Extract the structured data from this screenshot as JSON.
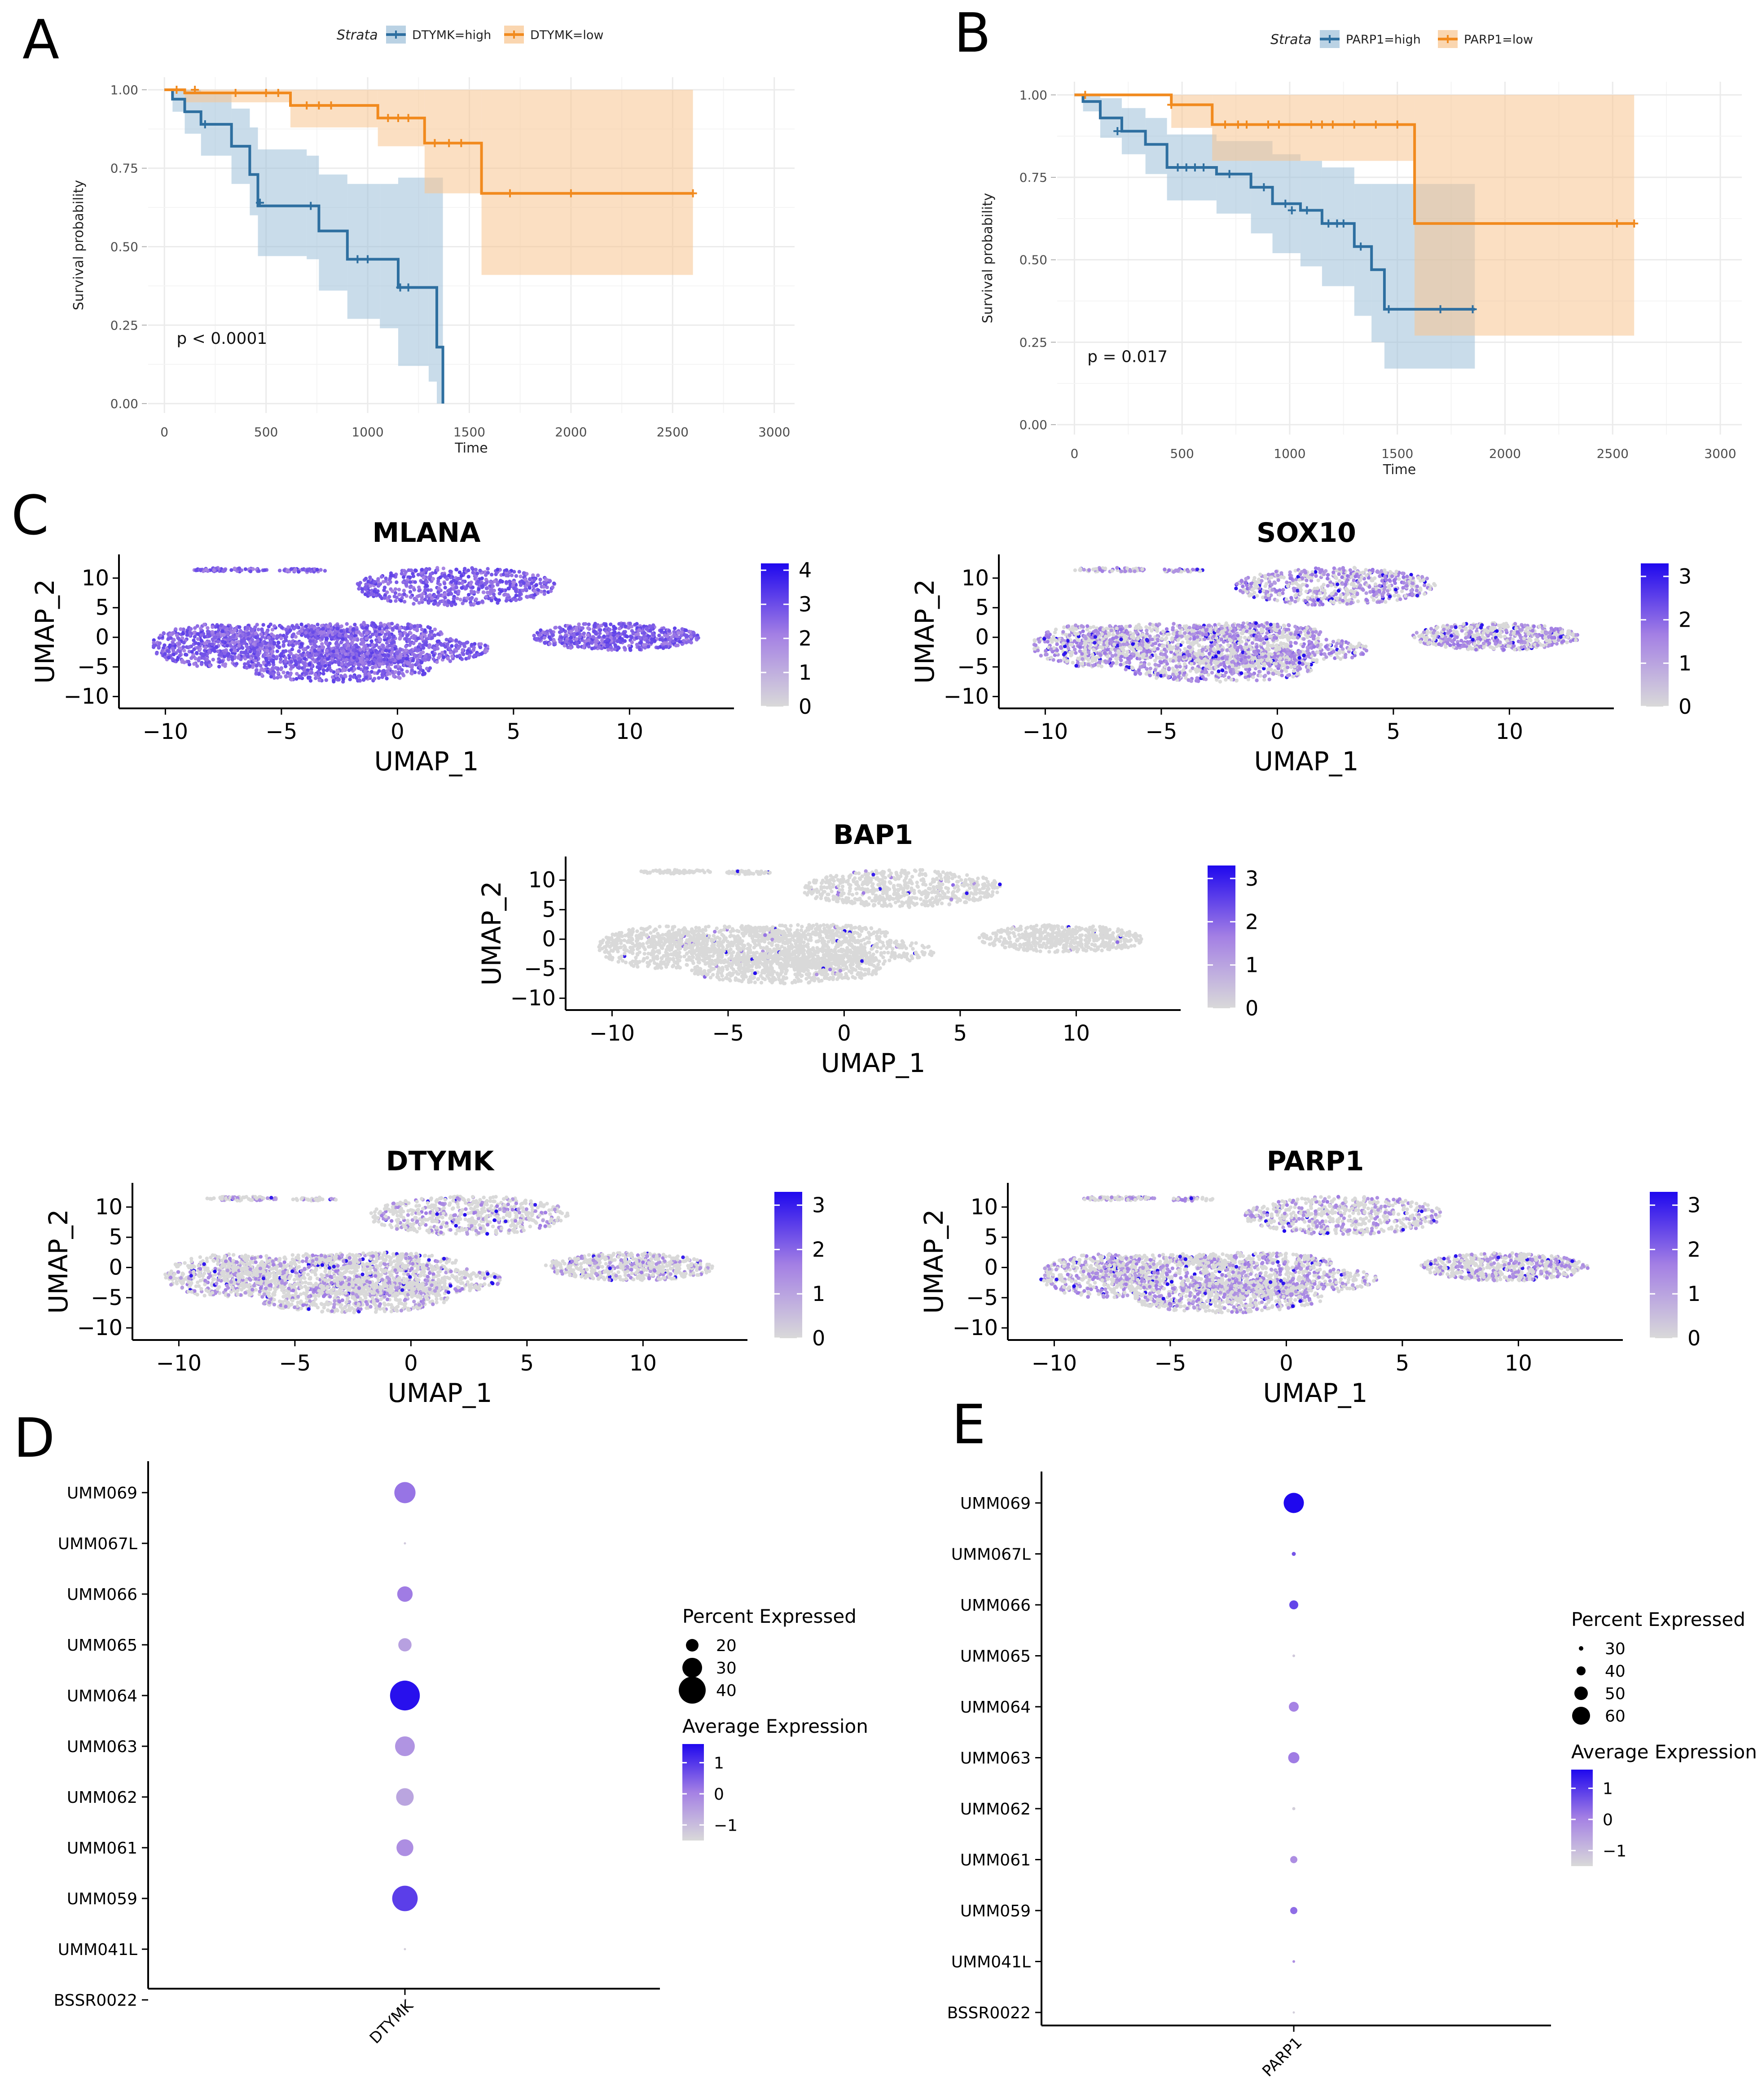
{
  "panel_labels": {
    "a": "A",
    "b": "B",
    "c": "C",
    "d": "D",
    "e": "E"
  },
  "chart_data": [
    {
      "id": "A",
      "type": "line",
      "subtype": "kaplan-meier",
      "legend_title": "Strata",
      "xlabel": "Time",
      "ylabel": "Survival probability",
      "xlim": [
        -80,
        3100
      ],
      "ylim": [
        -0.03,
        1.04
      ],
      "xticks": [
        0,
        500,
        1000,
        1500,
        2000,
        2500,
        3000
      ],
      "yticks": [
        0,
        0.25,
        0.5,
        0.75,
        1.0
      ],
      "ytick_labels": [
        "0.00",
        "0.25",
        "0.50",
        "0.75",
        "1.00"
      ],
      "annotation": "p < 0.0001",
      "annotation_pos": [
        60,
        0.19
      ],
      "series": [
        {
          "name": "DTYMK=high",
          "color": "#2E6FA0",
          "fill": "#9DBFD8",
          "steps": [
            [
              0,
              1.0
            ],
            [
              40,
              0.97
            ],
            [
              100,
              0.93
            ],
            [
              180,
              0.89
            ],
            [
              330,
              0.82
            ],
            [
              420,
              0.73
            ],
            [
              460,
              0.63
            ],
            [
              700,
              0.63
            ],
            [
              760,
              0.55
            ],
            [
              900,
              0.46
            ],
            [
              1060,
              0.46
            ],
            [
              1150,
              0.37
            ],
            [
              1300,
              0.37
            ],
            [
              1340,
              0.18
            ],
            [
              1370,
              0.0
            ]
          ],
          "lower": [
            [
              0,
              1.0
            ],
            [
              40,
              0.93
            ],
            [
              100,
              0.86
            ],
            [
              180,
              0.79
            ],
            [
              330,
              0.7
            ],
            [
              420,
              0.6
            ],
            [
              460,
              0.47
            ],
            [
              700,
              0.46
            ],
            [
              760,
              0.36
            ],
            [
              900,
              0.27
            ],
            [
              1060,
              0.24
            ],
            [
              1150,
              0.12
            ],
            [
              1300,
              0.07
            ],
            [
              1340,
              0.0
            ]
          ],
          "upper": [
            [
              0,
              1.0
            ],
            [
              40,
              1.0
            ],
            [
              100,
              1.0
            ],
            [
              180,
              0.99
            ],
            [
              330,
              0.94
            ],
            [
              420,
              0.88
            ],
            [
              460,
              0.81
            ],
            [
              700,
              0.79
            ],
            [
              760,
              0.73
            ],
            [
              900,
              0.7
            ],
            [
              1060,
              0.7
            ],
            [
              1150,
              0.72
            ],
            [
              1300,
              0.72
            ],
            [
              1340,
              0.72
            ],
            [
              1370,
              0.72
            ]
          ],
          "censored": [
            [
              200,
              0.89
            ],
            [
              470,
              0.64
            ],
            [
              720,
              0.63
            ],
            [
              950,
              0.46
            ],
            [
              1000,
              0.46
            ],
            [
              1160,
              0.37
            ],
            [
              1200,
              0.37
            ]
          ]
        },
        {
          "name": "DTYMK=low",
          "color": "#F18A1E",
          "fill": "#F8C58F",
          "steps": [
            [
              0,
              1.0
            ],
            [
              100,
              0.99
            ],
            [
              620,
              0.95
            ],
            [
              1050,
              0.91
            ],
            [
              1280,
              0.83
            ],
            [
              1560,
              0.67
            ],
            [
              2600,
              0.67
            ]
          ],
          "lower": [
            [
              0,
              1.0
            ],
            [
              100,
              0.96
            ],
            [
              620,
              0.88
            ],
            [
              1050,
              0.82
            ],
            [
              1280,
              0.67
            ],
            [
              1560,
              0.41
            ],
            [
              2600,
              0.41
            ]
          ],
          "upper": [
            [
              0,
              1.0
            ],
            [
              2600,
              1.0
            ]
          ],
          "censored": [
            [
              60,
              1.0
            ],
            [
              150,
              1.0
            ],
            [
              350,
              0.99
            ],
            [
              500,
              0.99
            ],
            [
              560,
              0.99
            ],
            [
              700,
              0.95
            ],
            [
              760,
              0.95
            ],
            [
              820,
              0.95
            ],
            [
              1100,
              0.91
            ],
            [
              1150,
              0.91
            ],
            [
              1200,
              0.91
            ],
            [
              1330,
              0.83
            ],
            [
              1400,
              0.83
            ],
            [
              1460,
              0.83
            ],
            [
              1700,
              0.67
            ],
            [
              2000,
              0.67
            ],
            [
              2600,
              0.67
            ]
          ]
        }
      ]
    },
    {
      "id": "B",
      "type": "line",
      "subtype": "kaplan-meier",
      "legend_title": "Strata",
      "xlabel": "Time",
      "ylabel": "Survival probability",
      "xlim": [
        -80,
        3100
      ],
      "ylim": [
        -0.03,
        1.04
      ],
      "xticks": [
        0,
        500,
        1000,
        1500,
        2000,
        2500,
        3000
      ],
      "yticks": [
        0,
        0.25,
        0.5,
        0.75,
        1.0
      ],
      "ytick_labels": [
        "0.00",
        "0.25",
        "0.50",
        "0.75",
        "1.00"
      ],
      "annotation": "p = 0.017",
      "annotation_pos": [
        60,
        0.19
      ],
      "series": [
        {
          "name": "PARP1=high",
          "color": "#2E6FA0",
          "fill": "#9DBFD8",
          "steps": [
            [
              0,
              1.0
            ],
            [
              40,
              0.98
            ],
            [
              120,
              0.93
            ],
            [
              220,
              0.89
            ],
            [
              330,
              0.85
            ],
            [
              430,
              0.78
            ],
            [
              660,
              0.76
            ],
            [
              820,
              0.72
            ],
            [
              920,
              0.67
            ],
            [
              1050,
              0.65
            ],
            [
              1150,
              0.61
            ],
            [
              1300,
              0.54
            ],
            [
              1380,
              0.47
            ],
            [
              1440,
              0.35
            ],
            [
              1860,
              0.35
            ]
          ],
          "lower": [
            [
              0,
              1.0
            ],
            [
              40,
              0.95
            ],
            [
              120,
              0.87
            ],
            [
              220,
              0.82
            ],
            [
              330,
              0.76
            ],
            [
              430,
              0.68
            ],
            [
              660,
              0.64
            ],
            [
              820,
              0.58
            ],
            [
              920,
              0.52
            ],
            [
              1050,
              0.48
            ],
            [
              1150,
              0.42
            ],
            [
              1300,
              0.33
            ],
            [
              1380,
              0.25
            ],
            [
              1440,
              0.17
            ],
            [
              1860,
              0.17
            ]
          ],
          "upper": [
            [
              0,
              1.0
            ],
            [
              120,
              0.99
            ],
            [
              220,
              0.96
            ],
            [
              330,
              0.93
            ],
            [
              430,
              0.88
            ],
            [
              660,
              0.86
            ],
            [
              820,
              0.86
            ],
            [
              920,
              0.82
            ],
            [
              1050,
              0.8
            ],
            [
              1150,
              0.78
            ],
            [
              1300,
              0.73
            ],
            [
              1860,
              0.73
            ]
          ],
          "censored": [
            [
              200,
              0.89
            ],
            [
              480,
              0.78
            ],
            [
              520,
              0.78
            ],
            [
              560,
              0.78
            ],
            [
              600,
              0.78
            ],
            [
              720,
              0.76
            ],
            [
              880,
              0.72
            ],
            [
              980,
              0.67
            ],
            [
              1010,
              0.65
            ],
            [
              1080,
              0.65
            ],
            [
              1180,
              0.61
            ],
            [
              1220,
              0.61
            ],
            [
              1250,
              0.61
            ],
            [
              1330,
              0.54
            ],
            [
              1460,
              0.35
            ],
            [
              1700,
              0.35
            ],
            [
              1850,
              0.35
            ]
          ]
        },
        {
          "name": "PARP1=low",
          "color": "#F18A1E",
          "fill": "#F8C58F",
          "steps": [
            [
              0,
              1.0
            ],
            [
              450,
              0.97
            ],
            [
              640,
              0.91
            ],
            [
              1580,
              0.61
            ],
            [
              2600,
              0.61
            ]
          ],
          "lower": [
            [
              0,
              1.0
            ],
            [
              450,
              0.9
            ],
            [
              640,
              0.8
            ],
            [
              1580,
              0.27
            ],
            [
              2600,
              0.27
            ]
          ],
          "upper": [
            [
              0,
              1.0
            ],
            [
              2600,
              1.0
            ]
          ],
          "censored": [
            [
              50,
              1.0
            ],
            [
              450,
              0.97
            ],
            [
              700,
              0.91
            ],
            [
              760,
              0.91
            ],
            [
              800,
              0.91
            ],
            [
              900,
              0.91
            ],
            [
              950,
              0.91
            ],
            [
              1100,
              0.91
            ],
            [
              1150,
              0.91
            ],
            [
              1200,
              0.91
            ],
            [
              1300,
              0.91
            ],
            [
              1400,
              0.91
            ],
            [
              1500,
              0.91
            ],
            [
              2520,
              0.61
            ],
            [
              2600,
              0.61
            ]
          ]
        }
      ]
    },
    {
      "id": "C1",
      "type": "scatter",
      "subtype": "umap-feature",
      "title": "MLANA",
      "xlabel": "UMAP_1",
      "ylabel": "UMAP_2",
      "xticks": [
        -10,
        -5,
        0,
        5,
        10
      ],
      "yticks": [
        -10,
        -5,
        0,
        5,
        10
      ],
      "xlim": [
        -12,
        14.5
      ],
      "ylim": [
        -12,
        14
      ],
      "colorbar_ticks": [
        0,
        1,
        2,
        3,
        4
      ],
      "colorbar_max": 4.2,
      "expression_level": 0.62,
      "expression_fraction": 1.0,
      "high_fraction": 0.0
    },
    {
      "id": "C2",
      "type": "scatter",
      "subtype": "umap-feature",
      "title": "SOX10",
      "xlabel": "UMAP_1",
      "ylabel": "UMAP_2",
      "xticks": [
        -10,
        -5,
        0,
        5,
        10
      ],
      "yticks": [
        -10,
        -5,
        0,
        5,
        10
      ],
      "xlim": [
        -12,
        14.5
      ],
      "ylim": [
        -12,
        14
      ],
      "colorbar_ticks": [
        0,
        1,
        2,
        3
      ],
      "colorbar_max": 3.3,
      "expression_level": 0.45,
      "expression_fraction": 0.55,
      "high_fraction": 0.05
    },
    {
      "id": "C3",
      "type": "scatter",
      "subtype": "umap-feature",
      "title": "BAP1",
      "xlabel": "UMAP_1",
      "ylabel": "UMAP_2",
      "xticks": [
        -10,
        -5,
        0,
        5,
        10
      ],
      "yticks": [
        -10,
        -5,
        0,
        5,
        10
      ],
      "xlim": [
        -12,
        14.5
      ],
      "ylim": [
        -12,
        14
      ],
      "colorbar_ticks": [
        0,
        1,
        2,
        3
      ],
      "colorbar_max": 3.3,
      "expression_level": 0.5,
      "expression_fraction": 0.02,
      "high_fraction": 0.01
    },
    {
      "id": "C4",
      "type": "scatter",
      "subtype": "umap-feature",
      "title": "DTYMK",
      "xlabel": "UMAP_1",
      "ylabel": "UMAP_2",
      "xticks": [
        -10,
        -5,
        0,
        5,
        10
      ],
      "yticks": [
        -10,
        -5,
        0,
        5,
        10
      ],
      "xlim": [
        -12,
        14.5
      ],
      "ylim": [
        -12,
        14
      ],
      "colorbar_ticks": [
        0,
        1,
        2,
        3
      ],
      "colorbar_max": 3.3,
      "expression_level": 0.42,
      "expression_fraction": 0.3,
      "high_fraction": 0.03
    },
    {
      "id": "C5",
      "type": "scatter",
      "subtype": "umap-feature",
      "title": "PARP1",
      "xlabel": "UMAP_1",
      "ylabel": "UMAP_2",
      "xticks": [
        -10,
        -5,
        0,
        5,
        10
      ],
      "yticks": [
        -10,
        -5,
        0,
        5,
        10
      ],
      "xlim": [
        -12,
        14.5
      ],
      "ylim": [
        -12,
        14
      ],
      "colorbar_ticks": [
        0,
        1,
        2,
        3
      ],
      "colorbar_max": 3.3,
      "expression_level": 0.42,
      "expression_fraction": 0.38,
      "high_fraction": 0.03
    },
    {
      "id": "D",
      "type": "scatter",
      "subtype": "dotplot",
      "feature": "DTYMK",
      "categories": [
        "UMM069",
        "UMM067L",
        "UMM066",
        "UMM065",
        "UMM064",
        "UMM063",
        "UMM062",
        "UMM061",
        "UMM059",
        "UMM041L",
        "BSSR0022"
      ],
      "percent_expressed": [
        32,
        6,
        24,
        21,
        44,
        30,
        27,
        26,
        38,
        6,
        7
      ],
      "average_expression": [
        0.2,
        -1.2,
        0.1,
        -0.5,
        1.5,
        -0.3,
        -0.6,
        -0.2,
        0.9,
        -1.3,
        -1.2
      ],
      "legend_size_title": "Percent Expressed",
      "size_ticks": [
        20,
        30,
        40
      ],
      "legend_color_title": "Average Expression",
      "color_ticks": [
        1,
        0,
        -1
      ],
      "color_tick_labels": [
        "1",
        "0",
        "−1"
      ],
      "color_range": [
        -1.5,
        1.6
      ]
    },
    {
      "id": "E",
      "type": "scatter",
      "subtype": "dotplot",
      "feature": "PARP1",
      "categories": [
        "UMM069",
        "UMM067L",
        "UMM066",
        "UMM065",
        "UMM064",
        "UMM063",
        "UMM062",
        "UMM061",
        "UMM059",
        "UMM041L",
        "BSSR0022"
      ],
      "percent_expressed": [
        65,
        29,
        40,
        26,
        42,
        45,
        27,
        36,
        36,
        23,
        20
      ],
      "average_expression": [
        1.6,
        0.6,
        0.8,
        -1.2,
        0.0,
        0.1,
        -1.3,
        -0.2,
        0.3,
        -0.2,
        -1.3
      ],
      "legend_size_title": "Percent Expressed",
      "size_ticks": [
        30,
        40,
        50,
        60
      ],
      "legend_color_title": "Average Expression",
      "color_ticks": [
        1,
        0,
        -1
      ],
      "color_tick_labels": [
        "1",
        "0",
        "−1"
      ],
      "color_range": [
        -1.5,
        1.6
      ]
    }
  ]
}
